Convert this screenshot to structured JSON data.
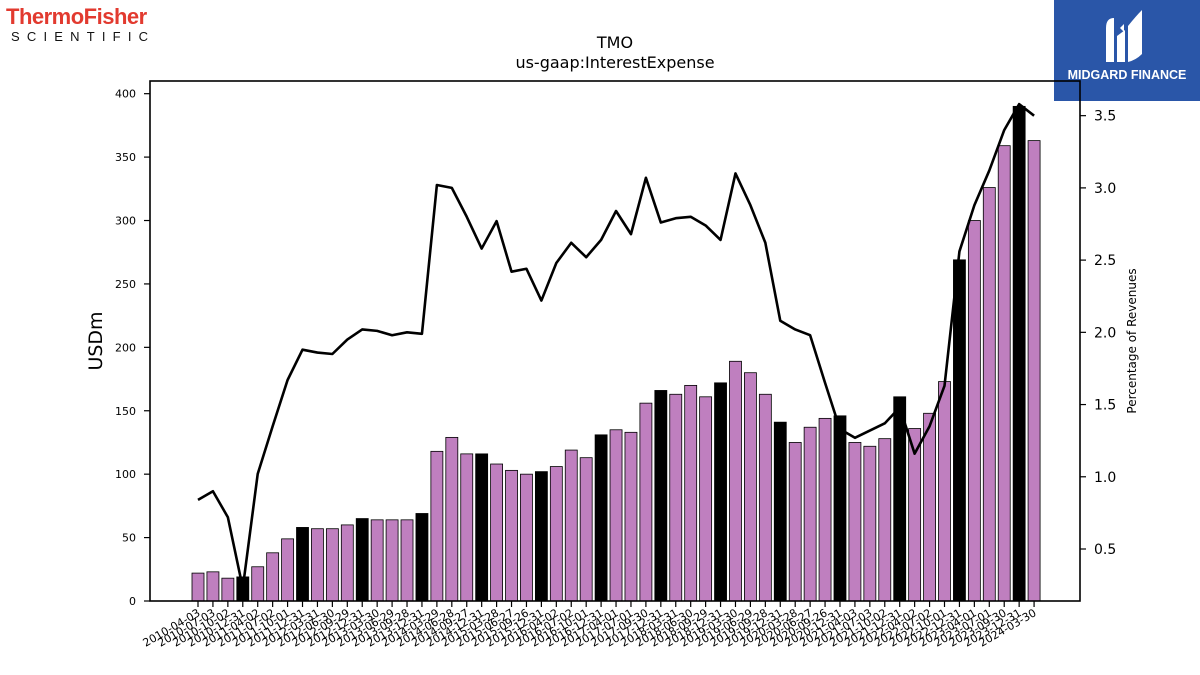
{
  "logos": {
    "left": {
      "brand": "ThermoFisher",
      "sub": "SCIENTIFIC"
    },
    "right": {
      "label": "MIDGARD FINANCE"
    }
  },
  "colors": {
    "bar_default": "#bf7fbf",
    "bar_highlight": "#000000",
    "line": "#000000"
  },
  "chart_data": {
    "type": "bar",
    "title": "TMO",
    "subtitle": "us-gaap:InterestExpense",
    "ylabel": "USDm",
    "y2label": "Percentage of Revenues",
    "ylim": [
      0,
      410
    ],
    "y2lim": [
      0.14,
      3.74
    ],
    "yticks": [
      0,
      50,
      100,
      150,
      200,
      250,
      300,
      350,
      400
    ],
    "y2ticks": [
      0.5,
      1.0,
      1.5,
      2.0,
      2.5,
      3.0,
      3.5
    ],
    "grid": false,
    "categories": [
      "2010-04-03",
      "2010-07-03",
      "2010-10-02",
      "2010-12-31",
      "2011-04-02",
      "2011-07-02",
      "2011-10-01",
      "2011-12-31",
      "2012-03-31",
      "2012-06-30",
      "2012-09-29",
      "2012-12-31",
      "2013-03-30",
      "2013-06-29",
      "2013-09-28",
      "2013-12-31",
      "2014-03-29",
      "2014-06-28",
      "2014-09-27",
      "2014-12-31",
      "2015-03-28",
      "2015-06-27",
      "2015-09-26",
      "2015-12-31",
      "2016-04-02",
      "2016-07-02",
      "2016-10-01",
      "2016-12-31",
      "2017-04-01",
      "2017-07-01",
      "2017-09-30",
      "2017-12-31",
      "2018-03-31",
      "2018-06-30",
      "2018-09-29",
      "2018-12-31",
      "2019-03-30",
      "2019-06-29",
      "2019-09-28",
      "2019-12-31",
      "2020-03-28",
      "2020-06-27",
      "2020-09-26",
      "2020-12-31",
      "2021-04-03",
      "2021-07-03",
      "2021-10-02",
      "2021-12-31",
      "2022-04-02",
      "2022-07-02",
      "2022-10-01",
      "2022-12-31",
      "2023-04-01",
      "2023-07-01",
      "2023-09-30",
      "2023-12-31",
      "2024-03-30"
    ],
    "series": [
      {
        "type": "bar",
        "axis": "left",
        "values": [
          22,
          23,
          18,
          19,
          27,
          38,
          49,
          58,
          57,
          57,
          60,
          65,
          64,
          64,
          64,
          69,
          118,
          129,
          116,
          116,
          108,
          103,
          100,
          102,
          106,
          119,
          113,
          131,
          135,
          133,
          156,
          166,
          163,
          170,
          161,
          172,
          189,
          180,
          163,
          141,
          125,
          137,
          144,
          146,
          125,
          122,
          128,
          161,
          136,
          148,
          173,
          269,
          300,
          326,
          359,
          390,
          363
        ],
        "highlight": [
          false,
          false,
          false,
          true,
          false,
          false,
          false,
          true,
          false,
          false,
          false,
          true,
          false,
          false,
          false,
          true,
          false,
          false,
          false,
          true,
          false,
          false,
          false,
          true,
          false,
          false,
          false,
          true,
          false,
          false,
          false,
          true,
          false,
          false,
          false,
          true,
          false,
          false,
          false,
          true,
          false,
          false,
          false,
          true,
          false,
          false,
          false,
          true,
          false,
          false,
          false,
          true,
          false,
          false,
          false,
          true,
          false
        ]
      },
      {
        "type": "line",
        "axis": "right",
        "values": [
          0.84,
          0.9,
          0.72,
          0.23,
          1.02,
          1.35,
          1.67,
          1.88,
          1.86,
          1.85,
          1.95,
          2.02,
          2.01,
          1.98,
          2.0,
          1.99,
          3.02,
          3.0,
          2.8,
          2.58,
          2.77,
          2.42,
          2.44,
          2.22,
          2.48,
          2.62,
          2.52,
          2.64,
          2.84,
          2.68,
          3.07,
          2.76,
          2.79,
          2.8,
          2.74,
          2.64,
          3.1,
          2.88,
          2.62,
          2.08,
          2.02,
          1.98,
          1.65,
          1.33,
          1.27,
          1.32,
          1.37,
          1.48,
          1.16,
          1.35,
          1.63,
          2.56,
          2.88,
          3.12,
          3.4,
          3.58,
          3.5
        ]
      }
    ]
  }
}
